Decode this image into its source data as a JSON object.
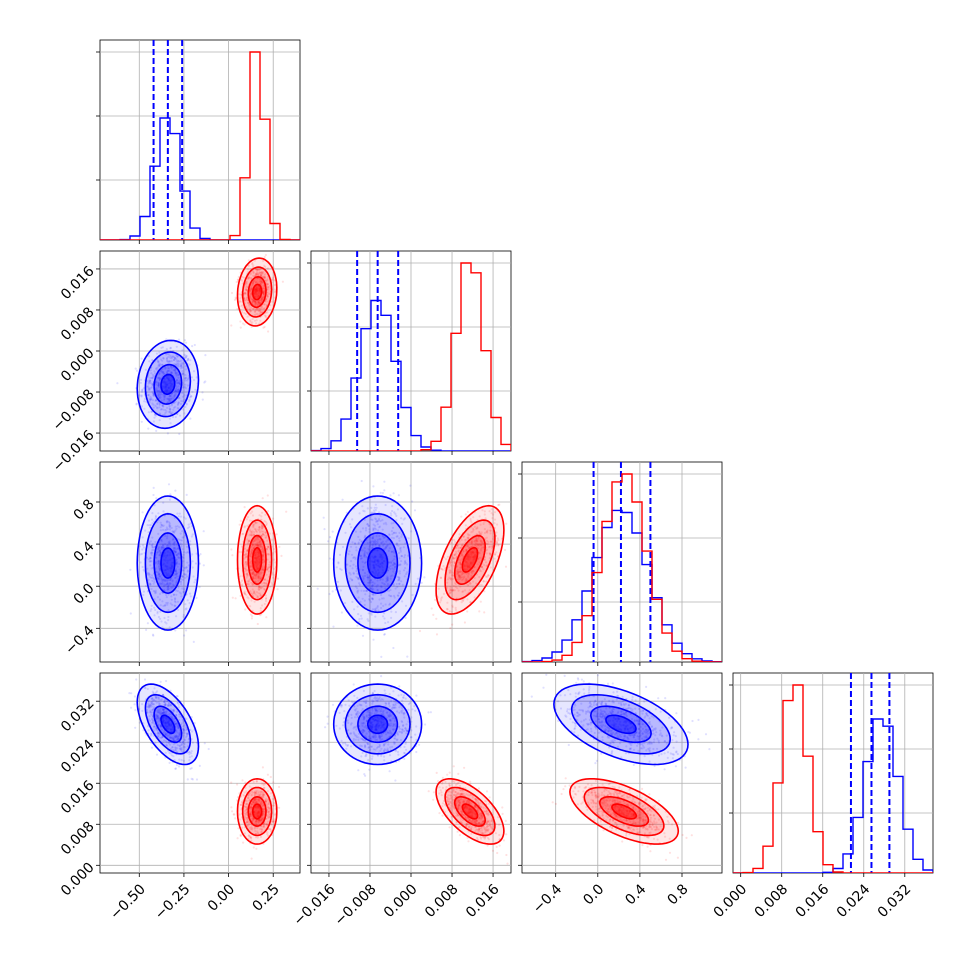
{
  "chart_data": {
    "type": "corner",
    "title": "",
    "grid": true,
    "colors": {
      "blue": "#0000ff",
      "red": "#ff0000"
    },
    "parameters": [
      {
        "index": 0,
        "range": [
          -0.72,
          0.4
        ],
        "ticks": [
          -0.5,
          -0.25,
          0.0,
          0.25
        ],
        "tick_labels": [
          "−0.50",
          "−0.25",
          "0.00",
          "0.25"
        ]
      },
      {
        "index": 1,
        "range": [
          -0.0195,
          0.0195
        ],
        "ticks": [
          -0.016,
          -0.008,
          0.0,
          0.008,
          0.016
        ],
        "tick_labels": [
          "−0.016",
          "−0.008",
          "0.000",
          "0.008",
          "0.016"
        ]
      },
      {
        "index": 2,
        "range": [
          -0.72,
          1.18
        ],
        "ticks": [
          -0.4,
          0.0,
          0.4,
          0.8
        ],
        "tick_labels": [
          "−0.4",
          "0.0",
          "0.4",
          "0.8"
        ]
      },
      {
        "index": 3,
        "range": [
          -0.0015,
          0.0375
        ],
        "ticks": [
          0.0,
          0.008,
          0.016,
          0.024,
          0.032
        ],
        "tick_labels": [
          "0.000",
          "0.008",
          "0.016",
          "0.024",
          "0.032"
        ]
      }
    ],
    "series": [
      {
        "color": "blue",
        "means": [
          -0.34,
          -0.0065,
          0.22,
          0.0275
        ],
        "stds": [
          0.07,
          0.0035,
          0.26,
          0.0032
        ],
        "correlations": {
          "0-1": 0.1,
          "0-2": 0.0,
          "0-3": -0.55,
          "1-2": 0.0,
          "1-3": 0.0,
          "2-3": -0.5
        },
        "quantiles": [
          [
            -0.42,
            -0.34,
            -0.26
          ],
          [
            -0.0105,
            -0.0065,
            -0.0025
          ],
          [
            -0.04,
            0.22,
            0.5
          ],
          [
            0.0215,
            0.0255,
            0.029
          ]
        ]
      },
      {
        "color": "red",
        "means": [
          0.16,
          0.0115,
          0.25,
          0.0105
        ],
        "stds": [
          0.045,
          0.0027,
          0.21,
          0.0026
        ],
        "correlations": {
          "0-1": 0.1,
          "0-2": 0.0,
          "0-3": 0.0,
          "1-2": 0.55,
          "1-3": -0.6,
          "2-3": -0.6
        }
      }
    ]
  }
}
